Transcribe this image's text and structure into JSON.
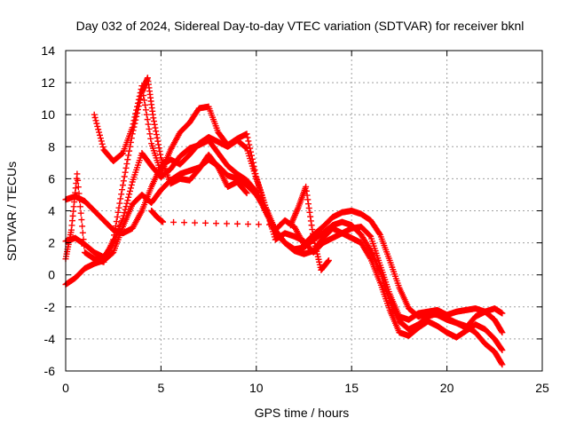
{
  "chart_data": {
    "type": "scatter",
    "title": "Day 032 of 2024, Sidereal Day-to-day VTEC variation (SDTVAR) for receiver bknl",
    "xlabel": "GPS time / hours",
    "ylabel": "SDTVAR / TECUs",
    "xlim": [
      0,
      25
    ],
    "ylim": [
      -6,
      14
    ],
    "xticks": [
      0,
      5,
      10,
      15,
      20,
      25
    ],
    "yticks": [
      -6,
      -4,
      -2,
      0,
      2,
      4,
      6,
      8,
      10,
      12,
      14
    ],
    "grid": true,
    "marker": "+",
    "color": "#ff0000",
    "series": [
      {
        "name": "track-1",
        "x": [
          0.0,
          0.5,
          1.0,
          1.5,
          2.0,
          2.5,
          3.0,
          3.5,
          4.0,
          4.5,
          5.0,
          5.5,
          6.0,
          6.5,
          7.0,
          7.5,
          8.0,
          8.5,
          9.0,
          9.5,
          10.0,
          10.5,
          11.0,
          11.5,
          12.0,
          12.5,
          13.0,
          13.5,
          14.0,
          14.5,
          15.0,
          15.5,
          16.0,
          16.5,
          17.0,
          17.5,
          18.0,
          18.5,
          19.0,
          19.5,
          20.0,
          20.5,
          21.0,
          21.5,
          22.0,
          22.5,
          22.9
        ],
        "y": [
          4.7,
          4.9,
          4.6,
          4.0,
          3.4,
          2.8,
          2.6,
          2.9,
          4.0,
          5.5,
          6.8,
          7.2,
          6.9,
          7.5,
          8.2,
          8.6,
          8.3,
          8.0,
          8.4,
          7.9,
          6.0,
          4.2,
          2.2,
          2.6,
          2.4,
          2.1,
          1.4,
          2.0,
          2.3,
          2.6,
          2.9,
          3.0,
          2.4,
          0.6,
          -1.2,
          -2.6,
          -2.8,
          -2.4,
          -2.3,
          -2.2,
          -2.5,
          -2.3,
          -2.2,
          -2.1,
          -2.3,
          -2.1,
          -2.4
        ]
      },
      {
        "name": "track-2",
        "x": [
          0.0,
          0.5,
          1.0,
          1.5,
          2.0,
          2.5,
          3.0,
          3.5,
          4.0,
          4.5,
          5.0,
          5.5,
          6.0,
          6.5,
          7.0,
          7.5,
          8.0,
          8.5,
          9.0,
          9.5,
          10.0,
          10.5,
          11.0,
          11.5,
          12.0,
          12.5,
          13.0,
          13.5,
          14.0,
          14.5,
          15.0,
          15.5,
          16.0,
          16.5,
          17.0,
          17.5,
          18.0,
          18.5,
          19.0,
          19.5,
          20.0,
          20.5,
          21.0,
          21.5,
          22.0,
          22.5,
          22.9
        ],
        "y": [
          2.1,
          2.3,
          1.9,
          1.4,
          1.1,
          2.0,
          3.5,
          5.8,
          7.6,
          6.8,
          6.1,
          6.6,
          7.4,
          7.9,
          8.1,
          8.4,
          7.6,
          6.8,
          6.3,
          5.9,
          5.2,
          3.9,
          2.8,
          2.0,
          1.6,
          1.7,
          2.2,
          2.6,
          3.1,
          3.3,
          3.1,
          2.5,
          1.5,
          0.2,
          -1.6,
          -2.9,
          -3.4,
          -3.1,
          -2.6,
          -2.4,
          -2.7,
          -3.0,
          -3.3,
          -2.6,
          -2.3,
          -2.8,
          -3.6
        ]
      },
      {
        "name": "track-3",
        "x": [
          0.0,
          0.5,
          1.0,
          1.5,
          2.0,
          2.5,
          3.0,
          3.5,
          4.0,
          4.5,
          5.0,
          5.5,
          6.0,
          6.5,
          7.0,
          7.5,
          8.0,
          8.5,
          9.0,
          9.5,
          10.0,
          10.5,
          11.0,
          11.5,
          12.0,
          12.5,
          13.0,
          13.5,
          14.0,
          14.5,
          15.0,
          15.5,
          16.0,
          16.5,
          17.0,
          17.5,
          18.0,
          18.5,
          19.0,
          19.5,
          20.0,
          20.5,
          21.0,
          21.5,
          22.0,
          22.5,
          22.9
        ],
        "y": [
          -0.6,
          -0.2,
          0.4,
          0.7,
          0.9,
          1.4,
          3.0,
          4.4,
          5.0,
          4.5,
          5.3,
          5.9,
          6.3,
          6.5,
          6.7,
          7.2,
          6.8,
          6.2,
          6.0,
          5.6,
          5.0,
          4.0,
          2.6,
          2.0,
          1.5,
          1.3,
          1.5,
          2.3,
          2.9,
          2.6,
          2.3,
          2.0,
          1.0,
          -0.5,
          -2.2,
          -3.6,
          -3.8,
          -3.3,
          -2.9,
          -3.2,
          -3.6,
          -3.9,
          -3.5,
          -3.1,
          -3.4,
          -4.0,
          -4.7
        ]
      },
      {
        "name": "track-4",
        "x": [
          1.5,
          2.0,
          2.5,
          3.0,
          3.5,
          4.0,
          4.5,
          5.0,
          5.5,
          6.0,
          6.5,
          7.0,
          7.5,
          8.0,
          8.5,
          9.0,
          9.5,
          10.0,
          10.5,
          11.0,
          11.5,
          12.0,
          12.5,
          13.0,
          13.5,
          14.0,
          14.5,
          15.0,
          15.5,
          16.0,
          16.5,
          17.0,
          17.5,
          18.0,
          18.5,
          19.0,
          19.5,
          20.0,
          20.5,
          21.0,
          21.5,
          22.0,
          22.5,
          22.9
        ],
        "y": [
          10.0,
          7.8,
          7.1,
          7.6,
          9.2,
          11.8,
          8.2,
          6.4,
          7.8,
          8.9,
          9.5,
          10.4,
          10.5,
          8.9,
          8.1,
          8.5,
          8.8,
          6.1,
          4.2,
          2.8,
          3.4,
          3.0,
          1.9,
          2.5,
          3.0,
          3.6,
          3.9,
          4.0,
          3.8,
          3.4,
          2.5,
          0.9,
          -0.8,
          -2.1,
          -2.6,
          -2.4,
          -2.5,
          -2.8,
          -3.0,
          -3.2,
          -3.6,
          -4.3,
          -4.8,
          -5.6
        ]
      },
      {
        "name": "track-5",
        "x": [
          0.0,
          0.3,
          0.6,
          1.0,
          1.5,
          2.0,
          2.5,
          3.0,
          3.5,
          4.0,
          4.3,
          4.6,
          5.0,
          5.5,
          6.0,
          6.5,
          7.0,
          7.5,
          8.0,
          8.5,
          9.0,
          9.5
        ],
        "y": [
          1.0,
          2.8,
          6.3,
          1.4,
          1.0,
          0.8,
          2.2,
          5.6,
          8.8,
          11.4,
          12.3,
          9.8,
          7.3,
          5.7,
          6.0,
          5.9,
          6.6,
          7.5,
          6.7,
          5.5,
          5.8,
          5.1
        ]
      },
      {
        "name": "track-6",
        "x": [
          4.5,
          4.8,
          5.1,
          11.8,
          12.2,
          12.6,
          13.0,
          13.4,
          13.8
        ],
        "y": [
          4.0,
          3.6,
          3.3,
          3.1,
          4.2,
          5.5,
          2.3,
          0.3,
          0.9
        ]
      }
    ]
  }
}
